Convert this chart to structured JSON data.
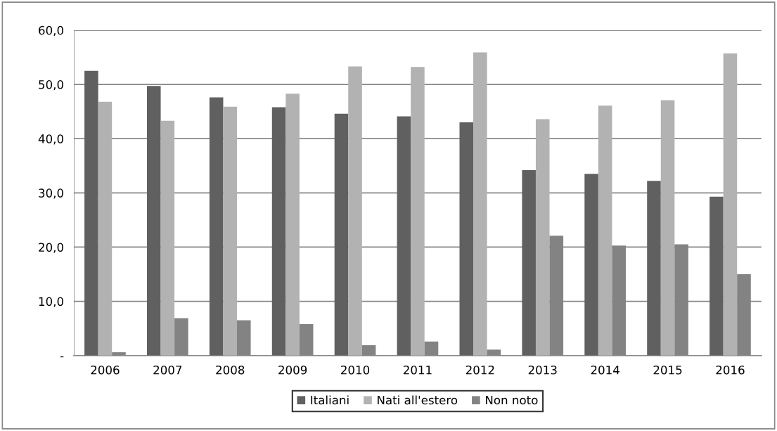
{
  "chart_data": {
    "type": "bar",
    "categories": [
      "2006",
      "2007",
      "2008",
      "2009",
      "2010",
      "2011",
      "2012",
      "2013",
      "2014",
      "2015",
      "2016"
    ],
    "series": [
      {
        "name": "Italiani",
        "color": "#606060",
        "values": [
          52.5,
          49.7,
          47.6,
          45.8,
          44.6,
          44.1,
          43.0,
          34.2,
          33.5,
          32.2,
          29.3
        ]
      },
      {
        "name": "Nati all'estero",
        "color": "#b2b2b2",
        "values": [
          46.8,
          43.3,
          45.9,
          48.3,
          53.3,
          53.2,
          55.9,
          43.6,
          46.1,
          47.1,
          55.7
        ]
      },
      {
        "name": "Non noto",
        "color": "#838383",
        "values": [
          0.6,
          6.9,
          6.5,
          5.8,
          1.9,
          2.6,
          1.1,
          22.1,
          20.3,
          20.5,
          15.0
        ]
      }
    ],
    "ylim": [
      0,
      60
    ],
    "yticks": [
      {
        "value": 0,
        "label": "-"
      },
      {
        "value": 10,
        "label": "10,0"
      },
      {
        "value": 20,
        "label": "20,0"
      },
      {
        "value": 30,
        "label": "30,0"
      },
      {
        "value": 40,
        "label": "40,0"
      },
      {
        "value": 50,
        "label": "50,0"
      },
      {
        "value": 60,
        "label": "60,0"
      }
    ],
    "grid": "y",
    "legend": "bottom"
  }
}
